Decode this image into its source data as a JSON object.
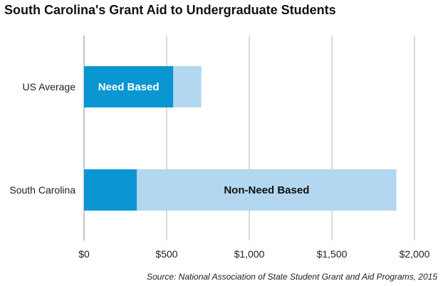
{
  "chart_data": {
    "type": "bar",
    "orientation": "horizontal",
    "stacked": true,
    "title": "South Carolina's Grant Aid to Undergraduate Students",
    "source": "Source: National Association of State Student Grant and Aid Programs, 2015",
    "categories": [
      "US Average",
      "South Carolina"
    ],
    "series": [
      {
        "name": "Need Based",
        "values": [
          540,
          320
        ],
        "color": "#0a96d2",
        "label_text_color": "#ffffff",
        "label_on_category": "US Average"
      },
      {
        "name": "Non-Need Based",
        "values": [
          170,
          1570
        ],
        "color": "#b3d7f0",
        "label_text_color": "#111111",
        "label_on_category": "South Carolina"
      }
    ],
    "xlim": [
      0,
      2000
    ],
    "x_ticks": [
      0,
      500,
      1000,
      1500,
      2000
    ],
    "x_tick_labels": [
      "$0",
      "$500",
      "$1,000",
      "$1,500",
      "$2,000"
    ],
    "grid": "vertical",
    "legend": "none (series names shown inside bars)"
  }
}
